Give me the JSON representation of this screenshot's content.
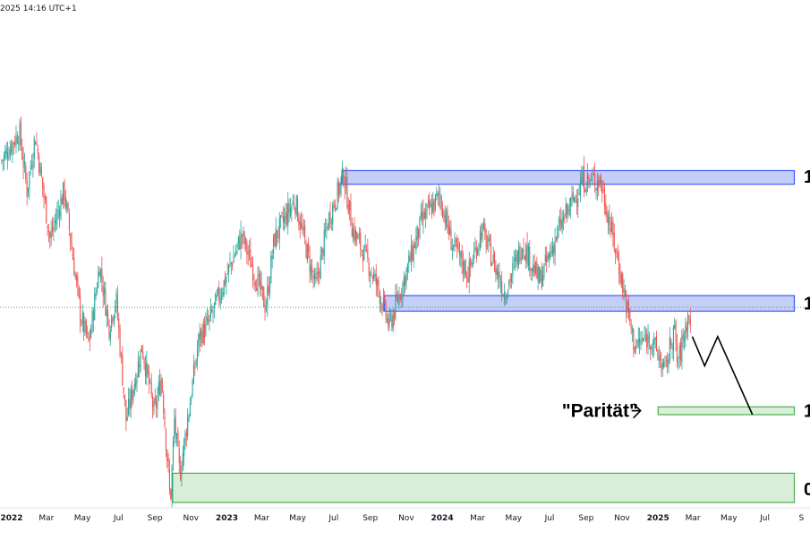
{
  "header": {
    "timestamp": "2025 14:16 UTC+1"
  },
  "colors": {
    "up": "#26a69a",
    "down": "#ef5350",
    "resistance_fill": "#c5cef8",
    "resistance_border": "#3d5afe",
    "support_fill": "#d8eed8",
    "support_border": "#4caf50",
    "price_line": "#4caf50",
    "axis_text": "#131722"
  },
  "chart_data": {
    "type": "candlestick",
    "title": "",
    "xlabel": "",
    "ylabel": "",
    "x_tick_labels": [
      {
        "label": "2022",
        "date": "2022-01",
        "bold": true
      },
      {
        "label": "Mar",
        "date": "2022-03"
      },
      {
        "label": "May",
        "date": "2022-05"
      },
      {
        "label": "Jul",
        "date": "2022-07"
      },
      {
        "label": "Sep",
        "date": "2022-09"
      },
      {
        "label": "Nov",
        "date": "2022-11"
      },
      {
        "label": "2023",
        "date": "2023-01",
        "bold": true
      },
      {
        "label": "Mar",
        "date": "2023-03"
      },
      {
        "label": "May",
        "date": "2023-05"
      },
      {
        "label": "Jul",
        "date": "2023-07"
      },
      {
        "label": "Sep",
        "date": "2023-09"
      },
      {
        "label": "Nov",
        "date": "2023-11"
      },
      {
        "label": "2024",
        "date": "2024-01",
        "bold": true
      },
      {
        "label": "Mar",
        "date": "2024-03"
      },
      {
        "label": "May",
        "date": "2024-05"
      },
      {
        "label": "Jul",
        "date": "2024-07"
      },
      {
        "label": "Sep",
        "date": "2024-09"
      },
      {
        "label": "Nov",
        "date": "2024-11"
      },
      {
        "label": "2025",
        "date": "2025-01",
        "bold": true
      },
      {
        "label": "Mar",
        "date": "2025-03"
      },
      {
        "label": "May",
        "date": "2025-05"
      },
      {
        "label": "Jul",
        "date": "2025-07"
      },
      {
        "label": "S",
        "date": "2025-09"
      }
    ],
    "price_path": [
      [
        "2021-12-15",
        1.13
      ],
      [
        "2022-01-14",
        1.145
      ],
      [
        "2022-01-27",
        1.115
      ],
      [
        "2022-02-10",
        1.143
      ],
      [
        "2022-03-07",
        1.09
      ],
      [
        "2022-03-31",
        1.115
      ],
      [
        "2022-04-28",
        1.05
      ],
      [
        "2022-05-12",
        1.036
      ],
      [
        "2022-05-30",
        1.077
      ],
      [
        "2022-06-15",
        1.045
      ],
      [
        "2022-06-27",
        1.06
      ],
      [
        "2022-07-14",
        0.997
      ],
      [
        "2022-08-10",
        1.035
      ],
      [
        "2022-08-31",
        1.0
      ],
      [
        "2022-09-12",
        1.02
      ],
      [
        "2022-09-27",
        0.955
      ],
      [
        "2022-10-04",
        0.997
      ],
      [
        "2022-10-13",
        0.969
      ],
      [
        "2022-11-15",
        1.04
      ],
      [
        "2022-12-01",
        1.047
      ],
      [
        "2022-12-30",
        1.07
      ],
      [
        "2023-01-26",
        1.092
      ],
      [
        "2023-03-08",
        1.055
      ],
      [
        "2023-03-22",
        1.09
      ],
      [
        "2023-04-26",
        1.11
      ],
      [
        "2023-05-31",
        1.065
      ],
      [
        "2023-06-22",
        1.1
      ],
      [
        "2023-07-18",
        1.123
      ],
      [
        "2023-08-02",
        1.095
      ],
      [
        "2023-08-25",
        1.08
      ],
      [
        "2023-09-14",
        1.065
      ],
      [
        "2023-10-03",
        1.045
      ],
      [
        "2023-10-24",
        1.065
      ],
      [
        "2023-11-28",
        1.1
      ],
      [
        "2023-12-28",
        1.112
      ],
      [
        "2024-01-17",
        1.088
      ],
      [
        "2024-02-14",
        1.072
      ],
      [
        "2024-03-08",
        1.095
      ],
      [
        "2024-04-16",
        1.062
      ],
      [
        "2024-05-16",
        1.088
      ],
      [
        "2024-06-14",
        1.068
      ],
      [
        "2024-07-17",
        1.095
      ],
      [
        "2024-08-26",
        1.12
      ],
      [
        "2024-09-25",
        1.12
      ],
      [
        "2024-10-24",
        1.08
      ],
      [
        "2024-11-22",
        1.035
      ],
      [
        "2024-12-18",
        1.04
      ],
      [
        "2025-01-13",
        1.022
      ],
      [
        "2025-01-28",
        1.045
      ],
      [
        "2025-02-03",
        1.025
      ],
      [
        "2025-02-20",
        1.05
      ],
      [
        "2025-02-26",
        1.048
      ]
    ],
    "zones": [
      {
        "name": "resistance-upper",
        "kind": "resistance",
        "from": "2023-07-15",
        "to": "2025-08-20",
        "y_top": 1.125,
        "y_bottom": 1.118
      },
      {
        "name": "resistance-lower",
        "kind": "resistance",
        "from": "2023-09-25",
        "to": "2025-08-20",
        "y_top": 1.061,
        "y_bottom": 1.053
      },
      {
        "name": "parity",
        "kind": "support",
        "from": "2025-01-01",
        "to": "2025-08-20",
        "y_top": 1.004,
        "y_bottom": 1.0
      },
      {
        "name": "support-bottom",
        "kind": "support",
        "from": "2022-10-01",
        "to": "2025-08-20",
        "y_top": 0.97,
        "y_bottom": 0.955
      }
    ],
    "price_line": {
      "y": 1.055
    },
    "projection_path": [
      [
        "2025-02-28",
        1.04
      ],
      [
        "2025-03-21",
        1.025
      ],
      [
        "2025-04-12",
        1.04
      ],
      [
        "2025-06-10",
        1.0
      ]
    ],
    "annotation": {
      "text": "\"Parität\"",
      "arrow_from": "2025-02-01",
      "arrow_to": "2024-12-25",
      "y": 1.002
    },
    "right_edge_labels": [
      {
        "text": "1",
        "y": 1.122
      },
      {
        "text": "1",
        "y": 1.057
      },
      {
        "text": "1",
        "y": 1.002
      },
      {
        "text": "0",
        "y": 0.962
      }
    ]
  }
}
